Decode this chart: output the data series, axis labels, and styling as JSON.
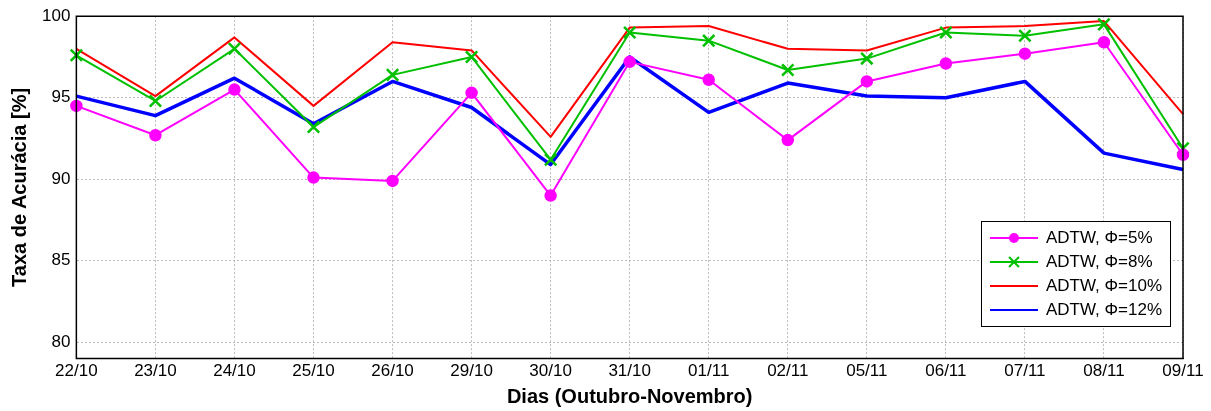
{
  "chart_data": {
    "type": "line",
    "xlabel": "Dias (Outubro-Novembro)",
    "ylabel": "Taxa de Acurácia [%]",
    "categories": [
      "22/10",
      "23/10",
      "24/10",
      "25/10",
      "26/10",
      "29/10",
      "30/10",
      "31/10",
      "01/11",
      "02/11",
      "05/11",
      "06/11",
      "07/11",
      "08/11",
      "09/11"
    ],
    "series": [
      {
        "name": "ADTW, Φ=5%",
        "color": "#ff00ff",
        "marker": "circle",
        "values": [
          94.5,
          92.7,
          95.5,
          90.1,
          89.9,
          95.3,
          89.0,
          97.2,
          96.1,
          92.4,
          96.0,
          97.1,
          97.7,
          98.4,
          91.5
        ]
      },
      {
        "name": "ADTW, Φ=8%",
        "color": "#00c000",
        "marker": "cross",
        "values": [
          97.6,
          94.8,
          98.0,
          93.2,
          96.4,
          97.5,
          91.2,
          99.0,
          98.5,
          96.7,
          97.4,
          99.0,
          98.8,
          99.5,
          91.9
        ]
      },
      {
        "name": "ADTW, Φ=10%",
        "color": "#ff0000",
        "marker": "none",
        "values": [
          98.0,
          95.1,
          98.7,
          94.5,
          98.4,
          97.9,
          92.6,
          99.3,
          99.4,
          98.0,
          97.9,
          99.3,
          99.4,
          99.7,
          94.0
        ]
      },
      {
        "name": "ADTW, Φ=12%",
        "color": "#0000ff",
        "marker": "none",
        "values": [
          95.1,
          93.9,
          96.2,
          93.4,
          96.0,
          94.4,
          90.9,
          97.5,
          94.1,
          95.9,
          95.1,
          95.0,
          96.0,
          91.6,
          90.6
        ]
      }
    ],
    "ylim": [
      79,
      100
    ],
    "yticks": [
      80,
      85,
      90,
      95,
      100
    ],
    "grid": true,
    "legend": "bottom right"
  }
}
